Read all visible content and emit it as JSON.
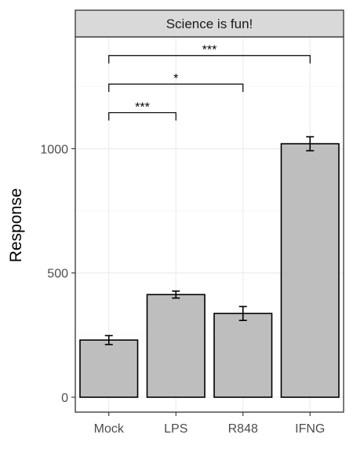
{
  "chart_data": {
    "type": "bar",
    "facet_title": "Science is fun!",
    "ylabel": "Response",
    "xlabel": "",
    "categories": [
      "Mock",
      "LPS",
      "R848",
      "IFNG"
    ],
    "values": [
      230,
      413,
      337,
      1020
    ],
    "errors": [
      18,
      14,
      28,
      28
    ],
    "ylim": [
      -60,
      1450
    ],
    "yticks": [
      0,
      500,
      1000
    ],
    "grid": true,
    "legend": "none",
    "bar_fill": "#bebebe",
    "bar_stroke": "#000000",
    "significance": [
      {
        "from": "Mock",
        "to": "LPS",
        "y": 1145,
        "label": "***"
      },
      {
        "from": "Mock",
        "to": "R848",
        "y": 1260,
        "label": "*"
      },
      {
        "from": "Mock",
        "to": "IFNG",
        "y": 1375,
        "label": "***"
      }
    ]
  }
}
